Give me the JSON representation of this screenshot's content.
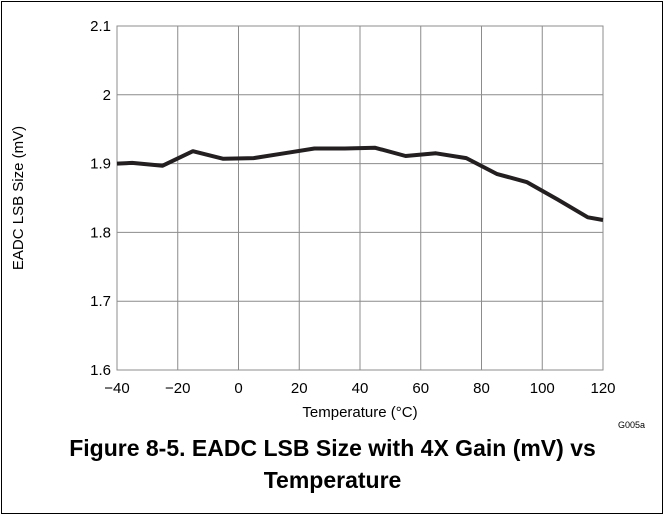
{
  "chart_data": {
    "type": "line",
    "ylabel": "EADC LSB Size (mV)",
    "xlabel": "Temperature (°C)",
    "xlim": [
      -40,
      120
    ],
    "ylim": [
      1.6,
      2.1
    ],
    "x_ticks": [
      "−40",
      "−20",
      "0",
      "20",
      "40",
      "60",
      "80",
      "100",
      "120"
    ],
    "y_ticks": [
      "1.6",
      "1.7",
      "1.8",
      "1.9",
      "2",
      "2.1"
    ],
    "grid": true,
    "series": [
      {
        "x": [
          -40,
          -35,
          -25,
          -15,
          -5,
          5,
          15,
          25,
          35,
          45,
          55,
          65,
          75,
          85,
          95,
          105,
          115,
          120
        ],
        "y": [
          1.9,
          1.901,
          1.897,
          1.918,
          1.907,
          1.908,
          1.915,
          1.922,
          1.922,
          1.923,
          1.911,
          1.915,
          1.908,
          1.885,
          1.873,
          1.848,
          1.822,
          1.818
        ]
      }
    ],
    "color": "#231f20",
    "annotation": "G005a"
  },
  "figure": {
    "caption_line1": "Figure 8-5. EADC LSB Size with 4X Gain (mV) vs",
    "caption_line2": "Temperature"
  }
}
